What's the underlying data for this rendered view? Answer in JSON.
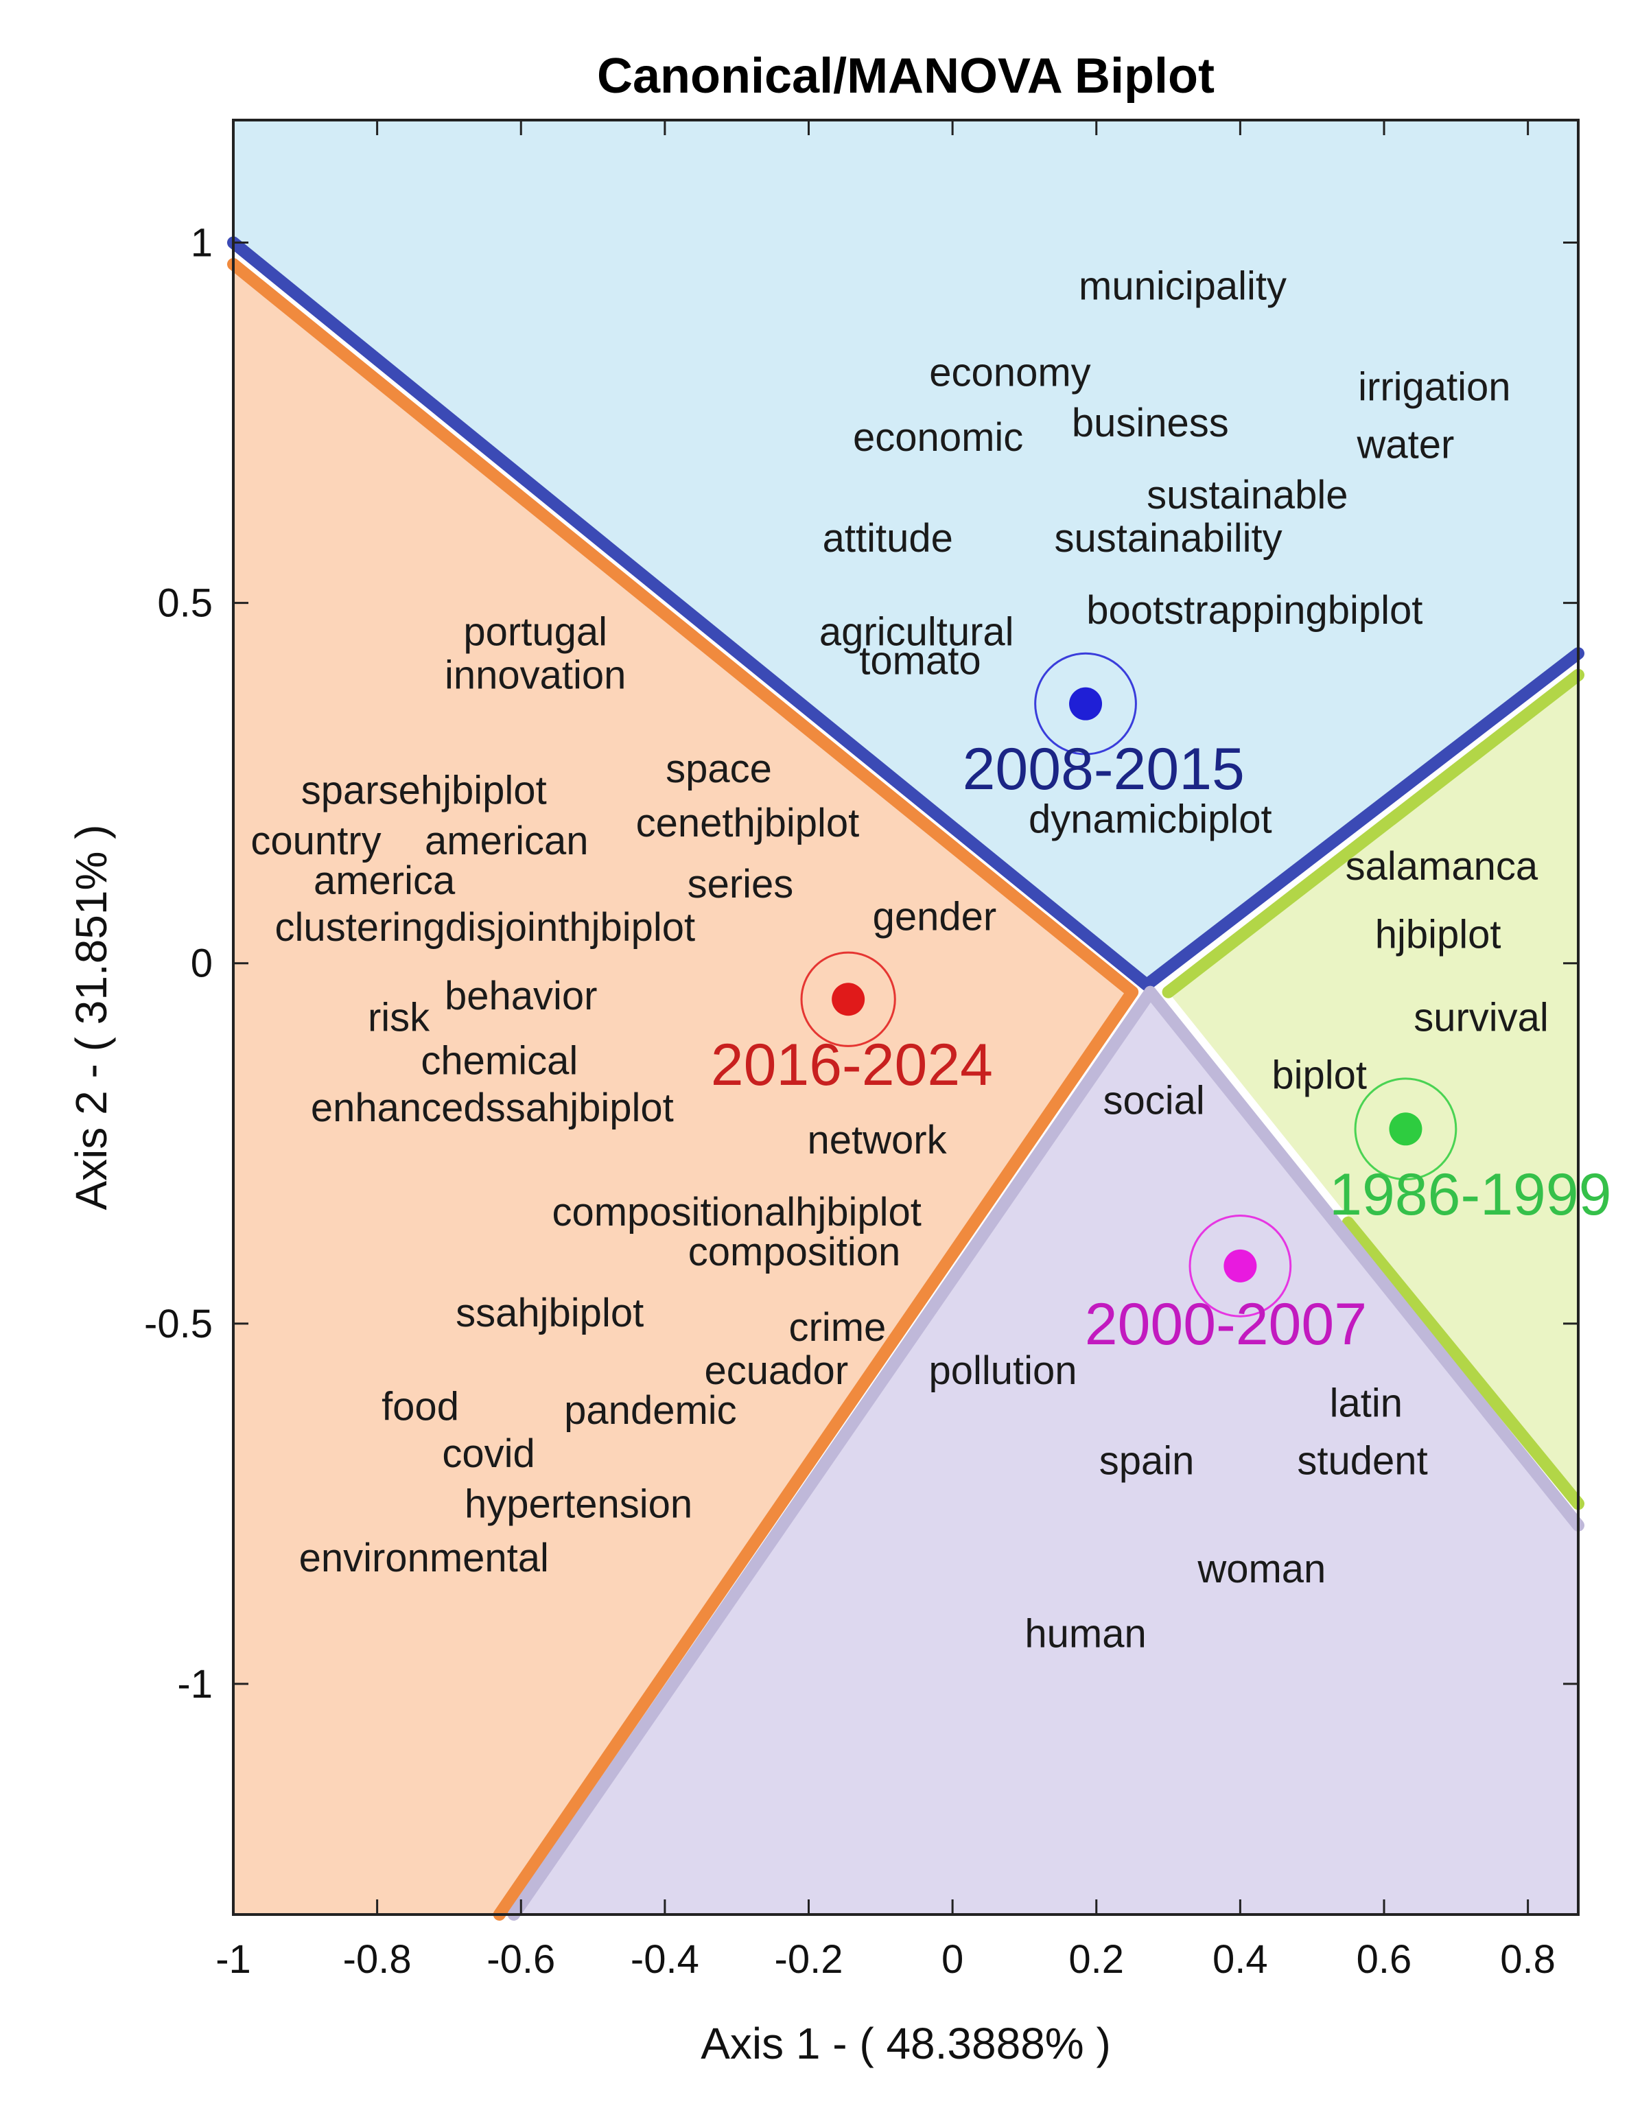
{
  "chart_data": {
    "type": "scatter",
    "title": "Canonical/MANOVA Biplot",
    "xlabel": "Axis 1 - ( 48.3888% )",
    "ylabel": "Axis 2 - ( 31.851% )",
    "xlim": [
      -1.0,
      0.87
    ],
    "ylim": [
      -1.32,
      1.17
    ],
    "xticks": [
      -1,
      -0.8,
      -0.6,
      -0.4,
      -0.2,
      0,
      0.2,
      0.4,
      0.6,
      0.8
    ],
    "xtick_labels": [
      "-1",
      "-0.8",
      "-0.6",
      "-0.4",
      "-0.2",
      "0",
      "0.2",
      "0.4",
      "0.6",
      "0.8"
    ],
    "yticks": [
      1,
      0.5,
      0,
      -0.5,
      -1
    ],
    "ytick_labels": [
      "1",
      "0.5",
      "0",
      "-0.5",
      "-1"
    ],
    "regions": [
      {
        "name": "2008-2015",
        "fill": "#d3ecf7",
        "polygon": [
          [
            -1.0,
            1.17
          ],
          [
            0.87,
            1.17
          ],
          [
            0.87,
            0.43
          ],
          [
            0.27,
            -0.03
          ],
          [
            -1.0,
            1.0
          ]
        ]
      },
      {
        "name": "2016-2024",
        "fill": "#fcd5b9",
        "polygon": [
          [
            -1.0,
            0.97
          ],
          [
            0.25,
            -0.04
          ],
          [
            -0.63,
            -1.32
          ],
          [
            -1.0,
            -1.32
          ]
        ]
      },
      {
        "name": "1986-1999",
        "fill": "#eaf4c4",
        "polygon": [
          [
            0.3,
            -0.04
          ],
          [
            0.87,
            0.4
          ],
          [
            0.87,
            -0.75
          ]
        ]
      },
      {
        "name": "2000-2007",
        "fill": "#ddd8ef",
        "polygon": [
          [
            0.275,
            -0.04
          ],
          [
            0.87,
            -0.78
          ],
          [
            0.87,
            -1.32
          ],
          [
            -0.61,
            -1.32
          ]
        ]
      }
    ],
    "boundaries": [
      {
        "color": "#3b4ab5",
        "points": [
          [
            -1.0,
            1.0
          ],
          [
            0.27,
            -0.03
          ],
          [
            0.87,
            0.43
          ]
        ]
      },
      {
        "color": "#f08a3e",
        "points": [
          [
            -1.0,
            0.97
          ],
          [
            0.25,
            -0.04
          ],
          [
            -0.63,
            -1.32
          ]
        ]
      },
      {
        "color": "#b2d647",
        "points": [
          [
            0.3,
            -0.04
          ],
          [
            0.87,
            0.4
          ]
        ]
      },
      {
        "color": "#b2d647",
        "points": [
          [
            0.55,
            -0.36
          ],
          [
            0.87,
            -0.75
          ]
        ]
      },
      {
        "color": "#bfb8d9",
        "points": [
          [
            0.275,
            -0.04
          ],
          [
            0.87,
            -0.78
          ]
        ]
      },
      {
        "color": "#bfb8d9",
        "points": [
          [
            0.275,
            -0.04
          ],
          [
            -0.61,
            -1.32
          ]
        ]
      }
    ],
    "groups": [
      {
        "name": "2008-2015",
        "x": 0.185,
        "y": 0.36,
        "color": "#1f1fd6",
        "text_color": "#1b2585",
        "radius": 0.07,
        "label_x": 0.21,
        "label_y": 0.27
      },
      {
        "name": "2016-2024",
        "x": -0.145,
        "y": -0.05,
        "color": "#e01a1a",
        "text_color": "#c8201f",
        "radius": 0.065,
        "label_x": -0.14,
        "label_y": -0.14
      },
      {
        "name": "1986-1999",
        "x": 0.63,
        "y": -0.23,
        "color": "#2ecc40",
        "text_color": "#35c04a",
        "radius": 0.07,
        "label_x": 0.72,
        "label_y": -0.32
      },
      {
        "name": "2000-2007",
        "x": 0.4,
        "y": -0.42,
        "color": "#e81adf",
        "text_color": "#c21abf",
        "radius": 0.07,
        "label_x": 0.38,
        "label_y": -0.5
      }
    ],
    "words": [
      {
        "text": "municipality",
        "x": 0.32,
        "y": 0.94
      },
      {
        "text": "economy",
        "x": 0.08,
        "y": 0.82
      },
      {
        "text": "irrigation",
        "x": 0.67,
        "y": 0.8
      },
      {
        "text": "business",
        "x": 0.275,
        "y": 0.75
      },
      {
        "text": "economic",
        "x": -0.02,
        "y": 0.73
      },
      {
        "text": "water",
        "x": 0.63,
        "y": 0.72
      },
      {
        "text": "sustainable",
        "x": 0.41,
        "y": 0.65
      },
      {
        "text": "attitude",
        "x": -0.09,
        "y": 0.59
      },
      {
        "text": "sustainability",
        "x": 0.3,
        "y": 0.59
      },
      {
        "text": "bootstrappingbiplot",
        "x": 0.42,
        "y": 0.49
      },
      {
        "text": "agricultural",
        "x": -0.05,
        "y": 0.46
      },
      {
        "text": "portugal",
        "x": -0.58,
        "y": 0.46
      },
      {
        "text": "tomato",
        "x": -0.045,
        "y": 0.42
      },
      {
        "text": "innovation",
        "x": -0.58,
        "y": 0.4
      },
      {
        "text": "space",
        "x": -0.325,
        "y": 0.27
      },
      {
        "text": "sparsehjbiplot",
        "x": -0.735,
        "y": 0.24
      },
      {
        "text": "cenethjbiplot",
        "x": -0.285,
        "y": 0.195
      },
      {
        "text": "dynamicbiplot",
        "x": 0.275,
        "y": 0.2
      },
      {
        "text": "country",
        "x": -0.885,
        "y": 0.17
      },
      {
        "text": "american",
        "x": -0.62,
        "y": 0.17
      },
      {
        "text": "america",
        "x": -0.79,
        "y": 0.115
      },
      {
        "text": "series",
        "x": -0.295,
        "y": 0.11
      },
      {
        "text": "salamanca",
        "x": 0.68,
        "y": 0.135
      },
      {
        "text": "gender",
        "x": -0.025,
        "y": 0.065
      },
      {
        "text": "clusteringdisjointhjbiplot",
        "x": -0.65,
        "y": 0.05
      },
      {
        "text": "hjbiplot",
        "x": 0.675,
        "y": 0.04
      },
      {
        "text": "behavior",
        "x": -0.6,
        "y": -0.045
      },
      {
        "text": "risk",
        "x": -0.77,
        "y": -0.075
      },
      {
        "text": "survival",
        "x": 0.735,
        "y": -0.075
      },
      {
        "text": "chemical",
        "x": -0.63,
        "y": -0.135
      },
      {
        "text": "biplot",
        "x": 0.51,
        "y": -0.155
      },
      {
        "text": "social",
        "x": 0.28,
        "y": -0.19
      },
      {
        "text": "enhancedssahjbiplot",
        "x": -0.64,
        "y": -0.2
      },
      {
        "text": "network",
        "x": -0.105,
        "y": -0.245
      },
      {
        "text": "compositionalhjbiplot",
        "x": -0.3,
        "y": -0.345
      },
      {
        "text": "composition",
        "x": -0.22,
        "y": -0.4
      },
      {
        "text": "ssahjbiplot",
        "x": -0.56,
        "y": -0.485
      },
      {
        "text": "crime",
        "x": -0.16,
        "y": -0.505
      },
      {
        "text": "ecuador",
        "x": -0.245,
        "y": -0.565
      },
      {
        "text": "pollution",
        "x": 0.07,
        "y": -0.565
      },
      {
        "text": "food",
        "x": -0.74,
        "y": -0.615
      },
      {
        "text": "pandemic",
        "x": -0.42,
        "y": -0.62
      },
      {
        "text": "latin",
        "x": 0.575,
        "y": -0.61
      },
      {
        "text": "covid",
        "x": -0.645,
        "y": -0.68
      },
      {
        "text": "spain",
        "x": 0.27,
        "y": -0.69
      },
      {
        "text": "student",
        "x": 0.57,
        "y": -0.69
      },
      {
        "text": "hypertension",
        "x": -0.52,
        "y": -0.75
      },
      {
        "text": "environmental",
        "x": -0.735,
        "y": -0.825
      },
      {
        "text": "woman",
        "x": 0.43,
        "y": -0.84
      },
      {
        "text": "human",
        "x": 0.185,
        "y": -0.93
      }
    ]
  }
}
